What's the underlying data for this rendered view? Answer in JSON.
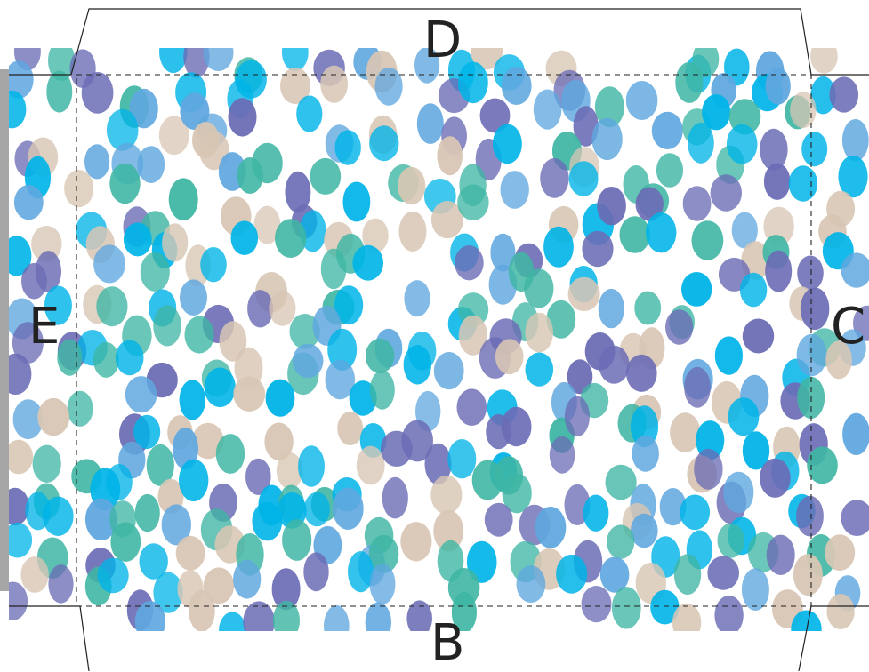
{
  "template": {
    "flap_labels": {
      "top": "D",
      "bottom": "B",
      "left": "E",
      "right": "C"
    }
  },
  "pattern": {
    "name": "watercolor-dots",
    "background": "#ffffff",
    "dot_colors": [
      "#00b4e8",
      "#5fa7df",
      "#6b6cb5",
      "#3fb6a4",
      "#d8c6b4"
    ]
  },
  "colors": {
    "cut_line": "#222222",
    "fold_line": "#222222",
    "side_strip": "#a6a6a6",
    "label": "#222222"
  }
}
